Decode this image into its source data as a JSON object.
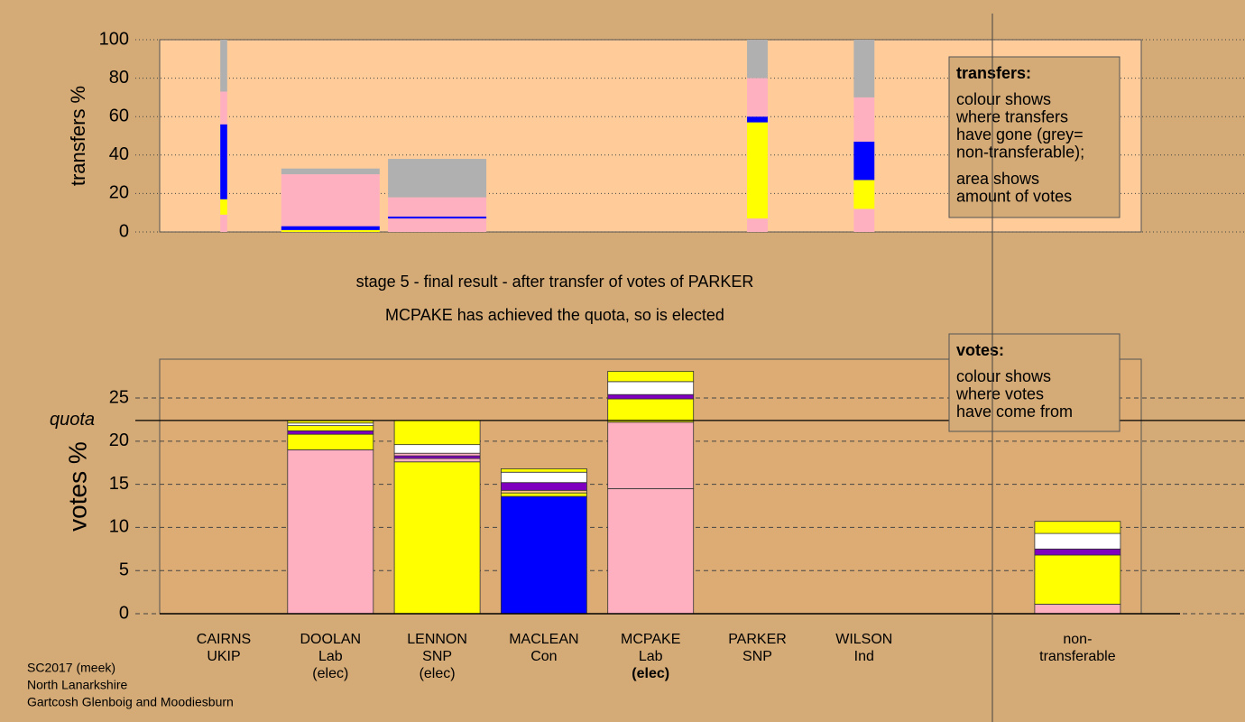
{
  "chart_data": [
    {
      "type": "transfer-bar",
      "ylabel": "transfers %",
      "ylim": [
        0,
        100
      ],
      "yticks": [
        0,
        20,
        40,
        60,
        80,
        100
      ],
      "grid": true,
      "bar_widths": [
        7,
        100,
        100,
        null,
        null,
        21,
        21,
        null
      ],
      "stacks": [
        [
          {
            "color": "#ffb0c0",
            "value": 9
          },
          {
            "color": "#ffff00",
            "value": 8
          },
          {
            "color": "#0000ff",
            "value": 39
          },
          {
            "color": "#ffb0c0",
            "value": 17
          },
          {
            "color": "#b0b0b0",
            "value": 27
          }
        ],
        [
          {
            "color": "#ffff00",
            "value": 1
          },
          {
            "color": "#0000ff",
            "value": 2
          },
          {
            "color": "#ffb0c0",
            "value": 27
          },
          {
            "color": "#b0b0b0",
            "value": 3
          }
        ],
        [
          {
            "color": "#ffb0c0",
            "value": 7
          },
          {
            "color": "#0000ff",
            "value": 1
          },
          {
            "color": "#ffb0c0",
            "value": 10
          },
          {
            "color": "#b0b0b0",
            "value": 20
          }
        ],
        [],
        [],
        [
          {
            "color": "#ffb0c0",
            "value": 7
          },
          {
            "color": "#ffff00",
            "value": 50
          },
          {
            "color": "#0000ff",
            "value": 3
          },
          {
            "color": "#ffb0c0",
            "value": 20
          },
          {
            "color": "#b0b0b0",
            "value": 20
          }
        ],
        [
          {
            "color": "#ffb0c0",
            "value": 12
          },
          {
            "color": "#ffff00",
            "value": 15
          },
          {
            "color": "#0000ff",
            "value": 20
          },
          {
            "color": "#ffb0c0",
            "value": 23
          },
          {
            "color": "#b0b0b0",
            "value": 30
          }
        ],
        []
      ],
      "legend": {
        "title": "transfers:",
        "paragraphs": [
          [
            "colour shows",
            "where transfers",
            "have gone (grey=",
            "non-transferable);"
          ],
          [
            "area shows",
            "amount of votes"
          ]
        ]
      }
    },
    {
      "type": "stacked-bar",
      "ylabel": "votes %",
      "ylim": [
        0,
        29.5
      ],
      "yticks": [
        0,
        5,
        10,
        15,
        20,
        25
      ],
      "grid": true,
      "quota": 22.4,
      "quota_label": "quota",
      "categories": [
        [
          "CAIRNS",
          "UKIP"
        ],
        [
          "DOOLAN",
          "Lab",
          "(elec)"
        ],
        [
          "LENNON",
          "SNP",
          "(elec)"
        ],
        [
          "MACLEAN",
          "Con"
        ],
        [
          "MCPAKE",
          "Lab",
          "(elec)"
        ],
        [
          "PARKER",
          "SNP"
        ],
        [
          "WILSON",
          "Ind"
        ],
        [
          "non-",
          "transferable"
        ]
      ],
      "highlight": {
        "category": 4,
        "line": 2
      },
      "stacks": [
        [],
        [
          {
            "color": "#ffb0c0",
            "value": 19.0
          },
          {
            "color": "#ffff00",
            "value": 1.8
          },
          {
            "color": "#8000c0",
            "value": 0.4
          },
          {
            "color": "#ffff00",
            "value": 0.6
          },
          {
            "color": "#ffffff",
            "value": 0.3
          },
          {
            "color": "#ffff00",
            "value": 0.3
          }
        ],
        [
          {
            "color": "#ffff00",
            "value": 17.6
          },
          {
            "color": "#ffb0c0",
            "value": 0.4
          },
          {
            "color": "#8000c0",
            "value": 0.3
          },
          {
            "color": "#ffb0c0",
            "value": 0.3
          },
          {
            "color": "#ffffff",
            "value": 1.0
          },
          {
            "color": "#ffff00",
            "value": 2.8
          }
        ],
        [
          {
            "color": "#0000ff",
            "value": 13.6
          },
          {
            "color": "#ffff00",
            "value": 0.4
          },
          {
            "color": "#ffc080",
            "value": 0.3
          },
          {
            "color": "#8000c0",
            "value": 0.9
          },
          {
            "color": "#ffffff",
            "value": 1.2
          },
          {
            "color": "#ffff00",
            "value": 0.4
          }
        ],
        [
          {
            "color": "#ffb0c0",
            "value": 14.5
          },
          {
            "color": "#ffb0c0",
            "value": 7.7
          },
          {
            "color": "#ffff00",
            "value": 2.7
          },
          {
            "color": "#8000c0",
            "value": 0.5
          },
          {
            "color": "#ffffff",
            "value": 1.5
          },
          {
            "color": "#ffff00",
            "value": 1.2
          }
        ],
        [],
        [],
        [
          {
            "color": "#ffb0c0",
            "value": 1.1
          },
          {
            "color": "#ffff00",
            "value": 5.7
          },
          {
            "color": "#8000c0",
            "value": 0.7
          },
          {
            "color": "#ffffff",
            "value": 1.8
          },
          {
            "color": "#ffff00",
            "value": 1.4
          }
        ]
      ],
      "legend": {
        "title": "votes:",
        "paragraphs": [
          [
            "colour shows",
            "where votes",
            "have come from"
          ]
        ]
      }
    }
  ],
  "stage_text": "stage 5 - final result - after transfer of votes of PARKER",
  "result_text": "MCPAKE has achieved the quota, so is elected",
  "footer": [
    "SC2017 (meek)",
    "North Lanarkshire",
    "Gartcosh Glenboig and Moodiesburn"
  ]
}
